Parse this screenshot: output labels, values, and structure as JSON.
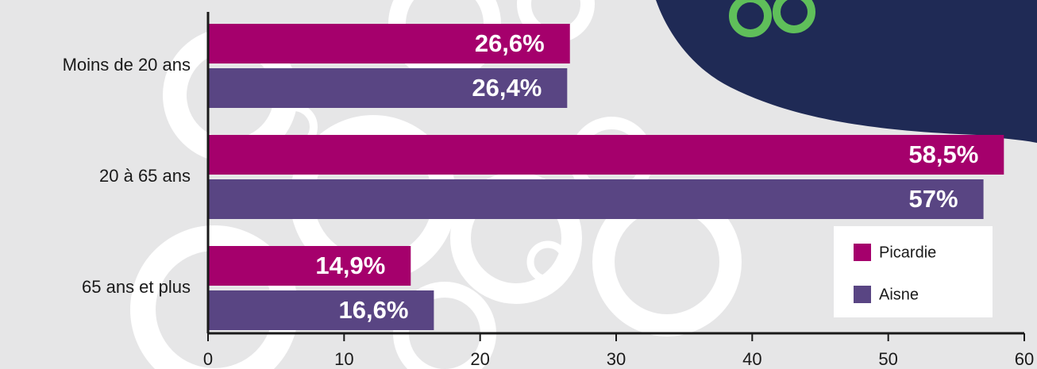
{
  "chart_data": {
    "type": "bar",
    "orientation": "horizontal",
    "categories": [
      "Moins de 20 ans",
      "20 à 65 ans",
      "65 ans et plus"
    ],
    "series": [
      {
        "name": "Picardie",
        "color": "#a5006c",
        "values": [
          26.6,
          58.5,
          14.9
        ],
        "value_labels": [
          "26,6%",
          "58,5%",
          "14,9%"
        ]
      },
      {
        "name": "Aisne",
        "color": "#594583",
        "values": [
          26.4,
          57,
          16.6
        ],
        "value_labels": [
          "26,4%",
          "57%",
          "16,6%"
        ]
      }
    ],
    "xlim": [
      0,
      60
    ],
    "xticks": [
      0,
      10,
      20,
      30,
      40,
      50,
      60
    ],
    "legend": "right"
  }
}
